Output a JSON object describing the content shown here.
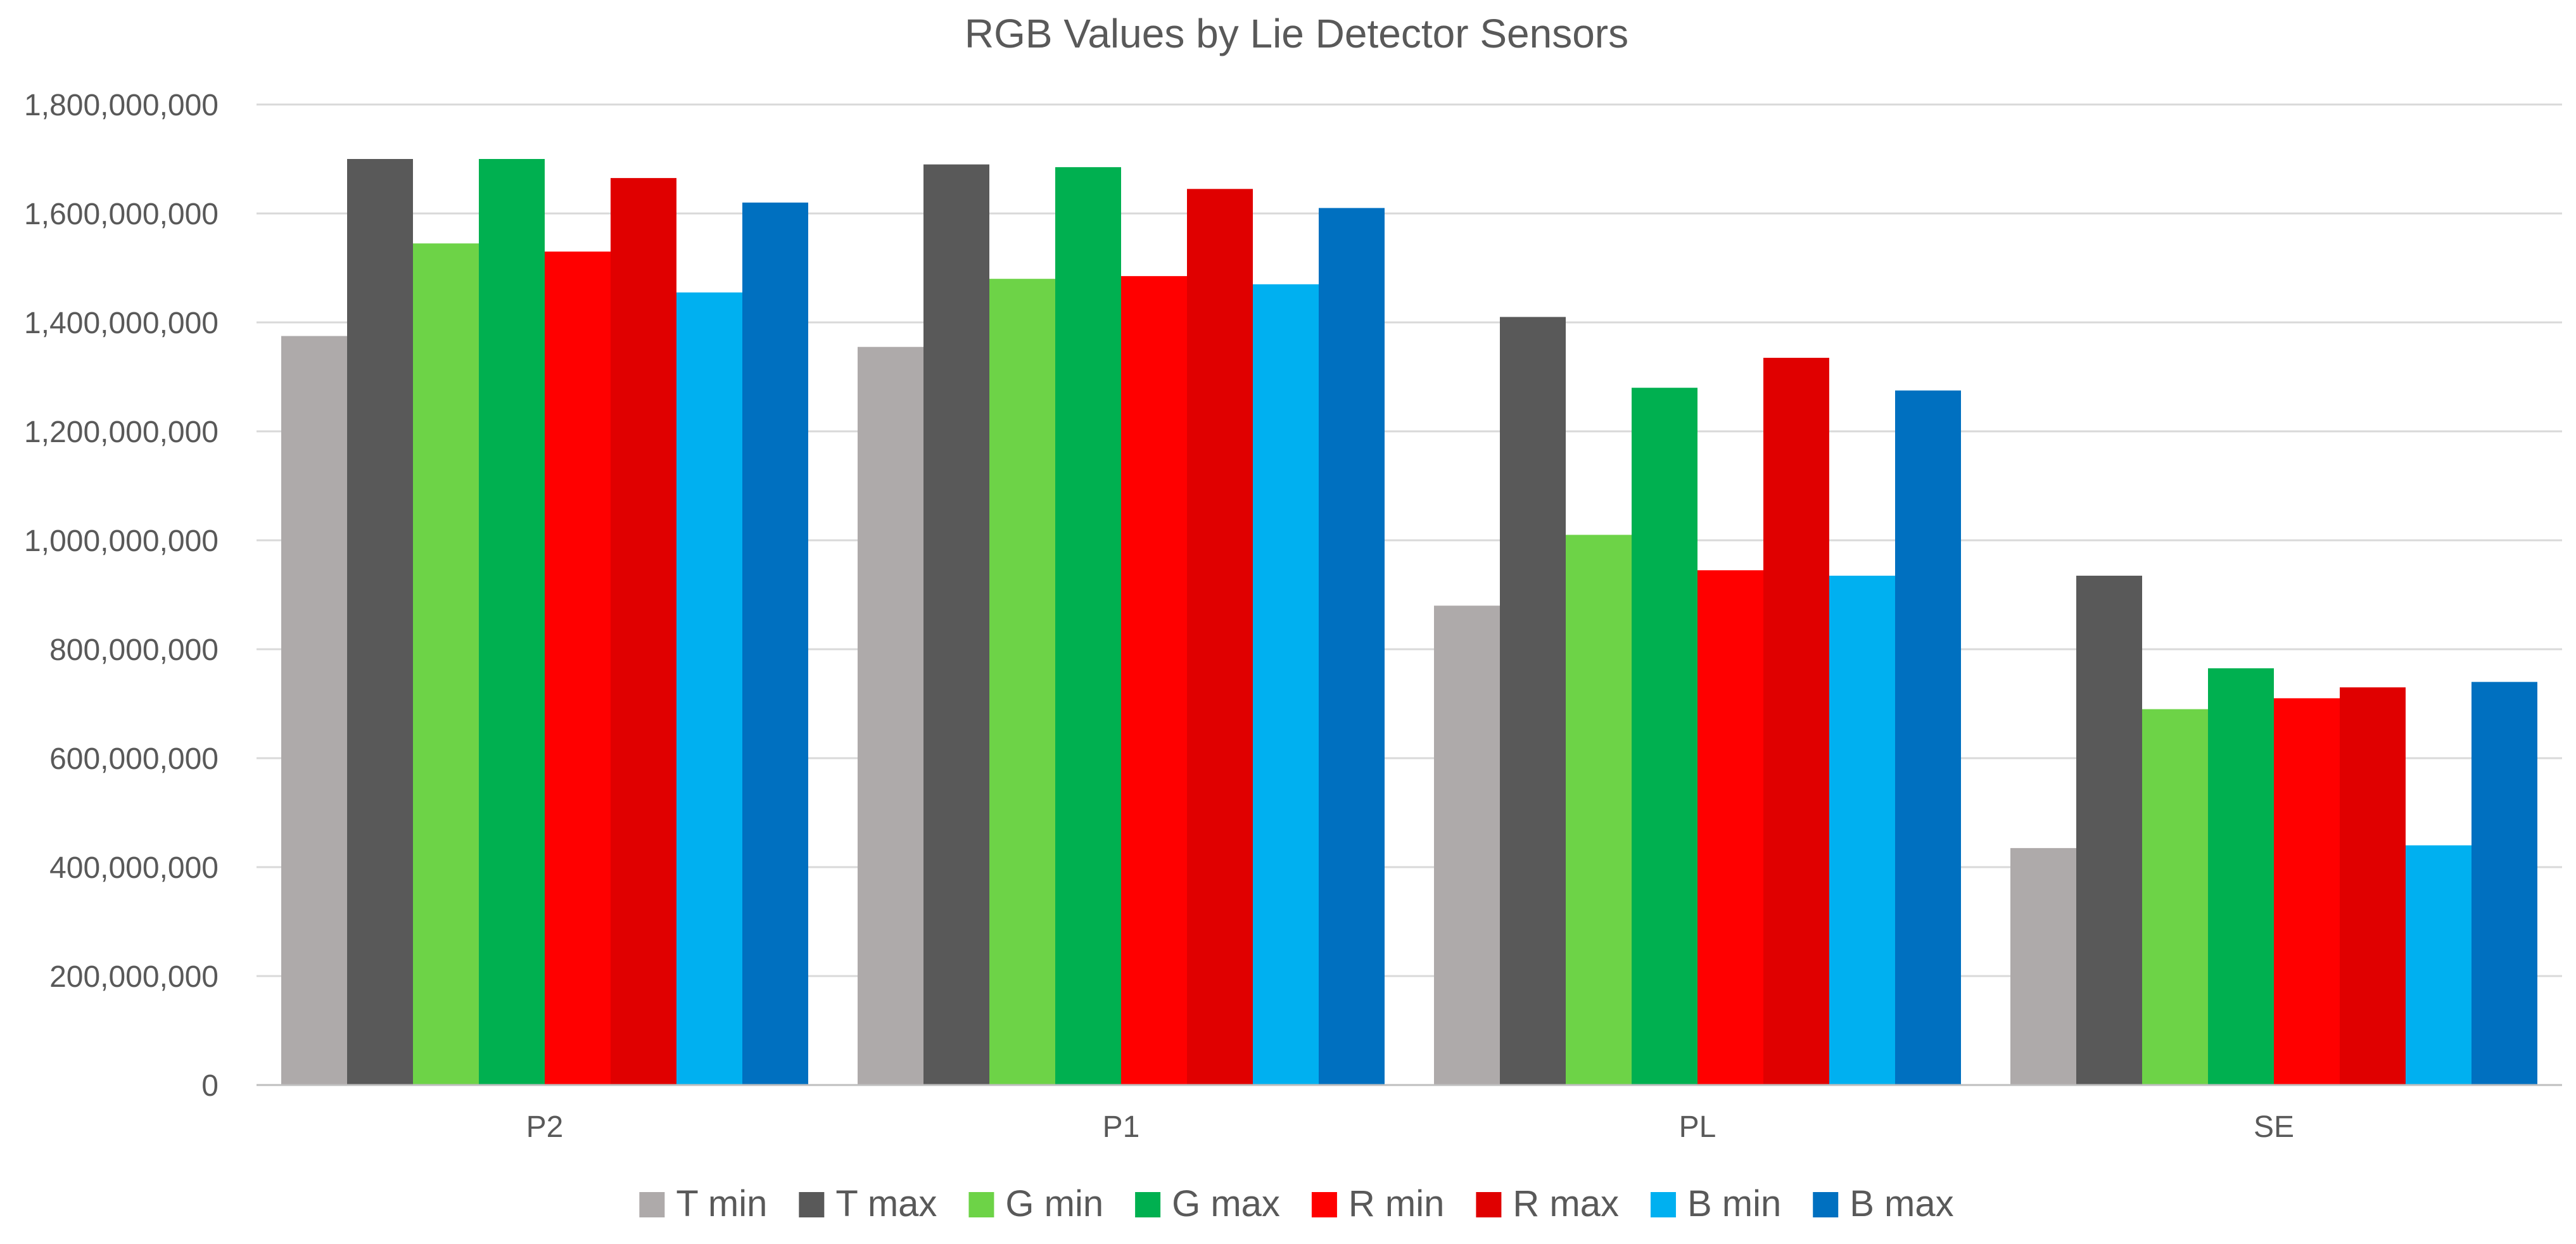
{
  "chart_data": {
    "type": "bar",
    "title": "RGB Values by Lie Detector Sensors",
    "xlabel": "",
    "ylabel": "",
    "ylim": [
      0,
      1800000000
    ],
    "y_ticks": [
      0,
      200000000,
      400000000,
      600000000,
      800000000,
      1000000000,
      1200000000,
      1400000000,
      1600000000,
      1800000000
    ],
    "y_tick_labels": [
      "0",
      "200,000,000",
      "400,000,000",
      "600,000,000",
      "800,000,000",
      "1,000,000,000",
      "1,200,000,000",
      "1,400,000,000",
      "1,600,000,000",
      "1,800,000,000"
    ],
    "grid": true,
    "legend_position": "bottom",
    "categories": [
      "P2",
      "P1",
      "PL",
      "SE"
    ],
    "series": [
      {
        "name": "T min",
        "color": "#AEAAAA",
        "values": [
          1375000000,
          1355000000,
          880000000,
          435000000
        ]
      },
      {
        "name": "T max",
        "color": "#595959",
        "values": [
          1700000000,
          1690000000,
          1410000000,
          935000000
        ]
      },
      {
        "name": "G min",
        "color": "#6DD347",
        "values": [
          1545000000,
          1480000000,
          1010000000,
          690000000
        ]
      },
      {
        "name": "G max",
        "color": "#00B050",
        "values": [
          1700000000,
          1685000000,
          1280000000,
          765000000
        ]
      },
      {
        "name": "R min",
        "color": "#FF0000",
        "values": [
          1530000000,
          1485000000,
          945000000,
          710000000
        ]
      },
      {
        "name": "R max",
        "color": "#E00000",
        "values": [
          1665000000,
          1645000000,
          1335000000,
          730000000
        ]
      },
      {
        "name": "B min",
        "color": "#00B0F0",
        "values": [
          1455000000,
          1470000000,
          935000000,
          440000000
        ]
      },
      {
        "name": "B max",
        "color": "#0070C0",
        "values": [
          1620000000,
          1610000000,
          1275000000,
          740000000
        ]
      }
    ]
  }
}
